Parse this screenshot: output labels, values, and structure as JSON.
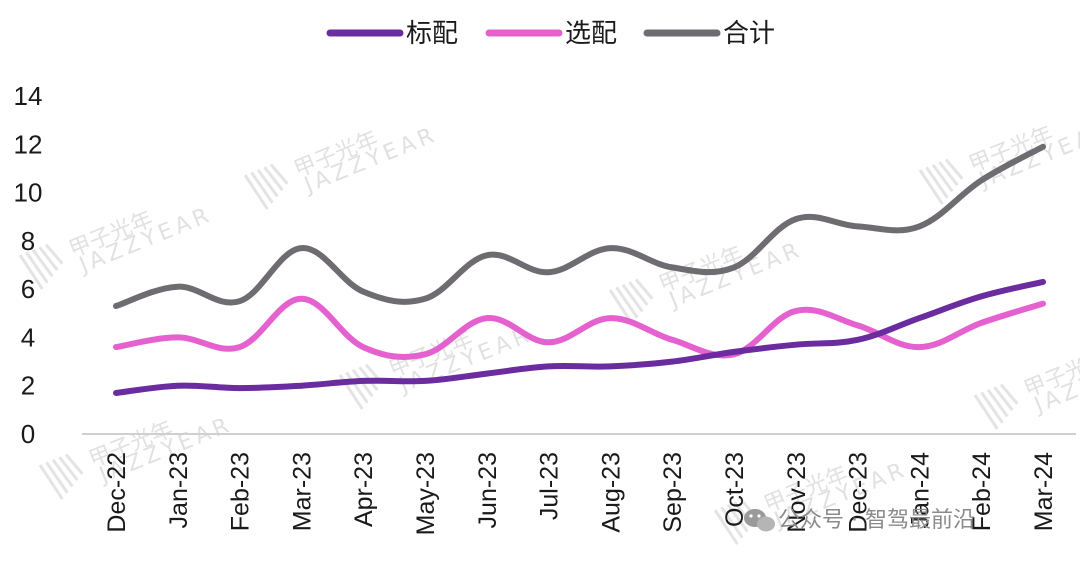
{
  "chart_data": {
    "type": "line",
    "categories": [
      "Dec-22",
      "Jan-23",
      "Feb-23",
      "Mar-23",
      "Apr-23",
      "May-23",
      "Jun-23",
      "Jul-23",
      "Aug-23",
      "Sep-23",
      "Oct-23",
      "Nov-23",
      "Dec-23",
      "Jan-24",
      "Feb-24",
      "Mar-24"
    ],
    "series": [
      {
        "name": "标配",
        "color": "#6a2c9e",
        "values": [
          1.7,
          2.0,
          1.9,
          2.0,
          2.2,
          2.2,
          2.5,
          2.8,
          2.8,
          3.0,
          3.4,
          3.7,
          3.9,
          4.8,
          5.7,
          6.3
        ]
      },
      {
        "name": "选配",
        "color": "#e461cf",
        "values": [
          3.6,
          4.0,
          3.6,
          5.6,
          3.6,
          3.3,
          4.8,
          3.8,
          4.8,
          3.9,
          3.3,
          5.1,
          4.5,
          3.6,
          4.6,
          5.4
        ]
      },
      {
        "name": "合计",
        "color": "#6e6c70",
        "values": [
          5.3,
          6.1,
          5.5,
          7.7,
          5.9,
          5.6,
          7.4,
          6.7,
          7.7,
          6.9,
          6.9,
          8.9,
          8.6,
          8.6,
          10.5,
          11.9
        ]
      }
    ],
    "ylim": [
      0,
      14
    ],
    "yticks": [
      0,
      2,
      4,
      6,
      8,
      10,
      12,
      14
    ],
    "legend_position": "top-center",
    "grid": false
  },
  "watermark": {
    "text": "甲子光年",
    "subtext": "JAZZYEAR"
  },
  "credit": {
    "icon": "wechat-icon",
    "text": "公众号 · 智驾最前沿"
  }
}
